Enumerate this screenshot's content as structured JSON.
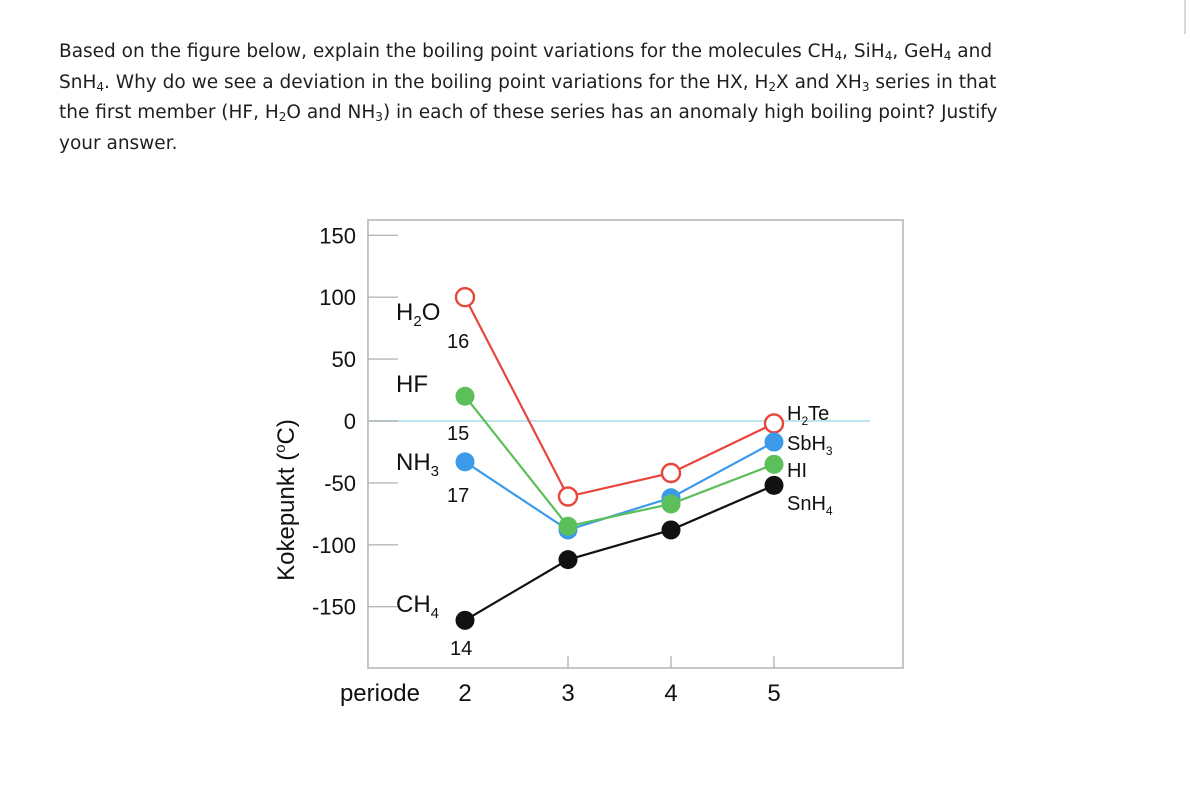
{
  "question": {
    "line1_a": "Based on the figure below, explain the boiling point variations for the molecules CH",
    "line1_sub1": "4",
    "line1_b": ", SiH",
    "line1_sub2": "4",
    "line1_c": ", GeH",
    "line1_sub3": "4",
    "line1_d": " and",
    "line2_a": "SnH",
    "line2_sub1": "4",
    "line2_b": ". Why do we see a deviation in the boiling point variations for the HX, H",
    "line2_sub2": "2",
    "line2_c": "X and XH",
    "line2_sub3": "3",
    "line2_d": " series in that",
    "line3_a": "the first member (HF, H",
    "line3_sub1": "2",
    "line3_b": "O and NH",
    "line3_sub2": "3",
    "line3_c": ") in each of these series has an anomaly high boiling point? Justify",
    "line4": "your answer."
  },
  "chart_data": {
    "type": "line",
    "ylabel": "Kokepunkt (oC)",
    "ylabel_prefix": "Kokepunkt (",
    "ylabel_sup": "o",
    "ylabel_suffix": "C)",
    "xlabel": "periode",
    "x": [
      2,
      3,
      4,
      5
    ],
    "x_ticks": [
      2,
      3,
      4,
      5
    ],
    "y_ticks": [
      150,
      100,
      50,
      0,
      -50,
      -100,
      -150
    ],
    "ylim": [
      -200,
      160
    ],
    "xlim": [
      1.5,
      6.3
    ],
    "zero_line": true,
    "series": [
      {
        "id": "h2x",
        "values": [
          100,
          -61,
          -42,
          -2
        ],
        "color": "#e8453c",
        "marker": "open-circle",
        "first_label_main": "H",
        "first_label_sub": "2",
        "first_label_tail": "O",
        "first_number": "16",
        "last_label_main": "H",
        "last_label_sub": "2",
        "last_label_tail": "Te"
      },
      {
        "id": "hx",
        "values": [
          20,
          -85,
          -67,
          -35
        ],
        "color": "#5bbf5a",
        "marker": "filled-circle",
        "first_label_main": "HF",
        "first_label_sub": "",
        "first_label_tail": "",
        "first_number": "15",
        "last_label_main": "HI",
        "last_label_sub": "",
        "last_label_tail": ""
      },
      {
        "id": "xh3",
        "values": [
          -33,
          -88,
          -62,
          -17
        ],
        "color": "#3c9be8",
        "marker": "filled-circle",
        "first_label_main": "NH",
        "first_label_sub": "3",
        "first_label_tail": "",
        "first_number": "17",
        "last_label_main": "SbH",
        "last_label_sub": "3",
        "last_label_tail": ""
      },
      {
        "id": "xh4",
        "values": [
          -161,
          -112,
          -88,
          -52
        ],
        "color": "#111111",
        "marker": "filled-circle",
        "first_label_main": "CH",
        "first_label_sub": "4",
        "first_label_tail": "",
        "first_number": "14",
        "last_label_main": "SnH",
        "last_label_sub": "4",
        "last_label_tail": ""
      }
    ]
  }
}
